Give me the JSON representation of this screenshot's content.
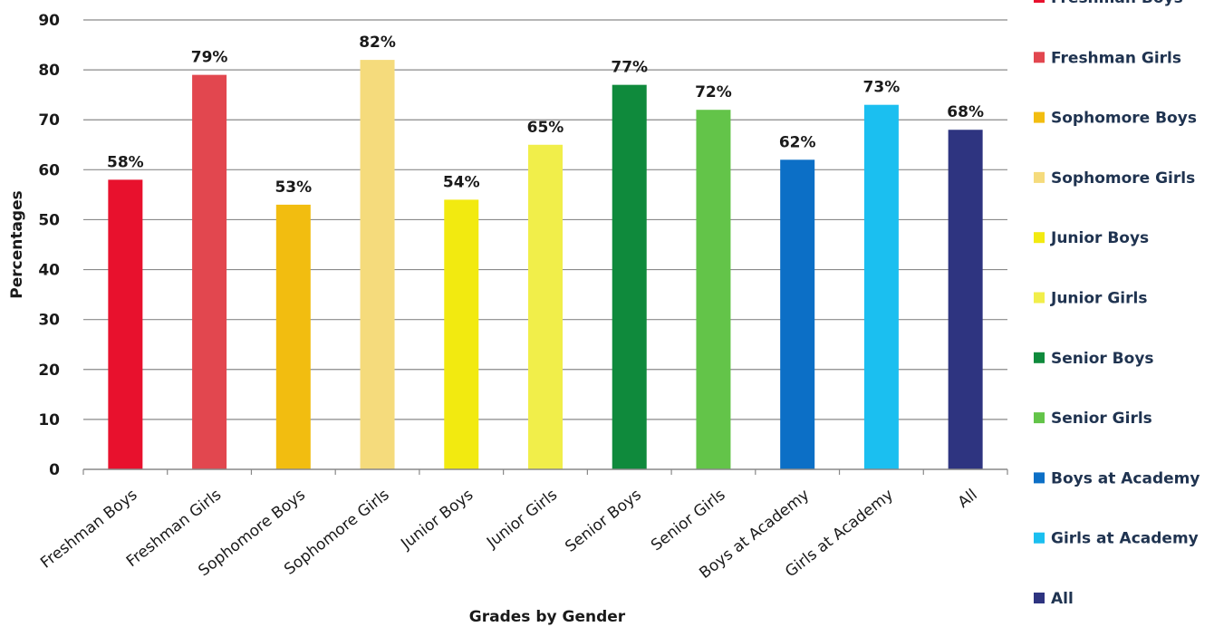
{
  "chart_data": {
    "type": "bar",
    "title": "",
    "xlabel": "Grades by Gender",
    "ylabel": "Percentages",
    "ylim": [
      0,
      90
    ],
    "yticks": [
      0,
      10,
      20,
      30,
      40,
      50,
      60,
      70,
      80,
      90
    ],
    "grid": true,
    "legend_position": "right",
    "categories": [
      "Freshman Boys",
      "Freshman Girls",
      "Sophomore Boys",
      "Sophomore Girls",
      "Junior Boys",
      "Junior Girls",
      "Senior Boys",
      "Senior Girls",
      "Boys at Academy",
      "Girls at Academy",
      "All"
    ],
    "values": [
      58,
      79,
      53,
      82,
      54,
      65,
      77,
      72,
      62,
      73,
      68
    ],
    "data_labels": [
      "58%",
      "79%",
      "53%",
      "82%",
      "54%",
      "65%",
      "77%",
      "72%",
      "62%",
      "73%",
      "68%"
    ],
    "colors": [
      "#e8112d",
      "#e2474f",
      "#f2bd10",
      "#f5db7c",
      "#f2ea10",
      "#f1ee4a",
      "#0f8a3c",
      "#63c449",
      "#0c6fc6",
      "#1bbff0",
      "#2e3480"
    ],
    "legend": [
      "Freshman Boys",
      "Freshman Girls",
      "Sophomore Boys",
      "Sophomore Girls",
      "Junior Boys",
      "Junior Girls",
      "Senior Boys",
      "Senior Girls",
      "Boys at Academy",
      "Girls at Academy",
      "All"
    ]
  }
}
